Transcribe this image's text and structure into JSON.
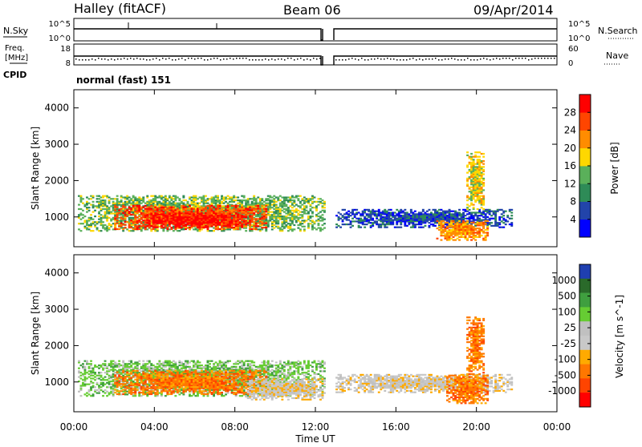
{
  "header": {
    "station": "Halley (fitACF)",
    "beam": "Beam 06",
    "date": "09/Apr/2014"
  },
  "params": {
    "nsky_label": "N.Sky",
    "nsearch_label": "N.Search",
    "freq_label": "Freq.",
    "freq_unit": "[MHz]",
    "nave_label": "Nave",
    "cpid_label": "CPID",
    "cpid_value": "normal (fast) 151",
    "noise_left_ticks": [
      "10^5",
      "10^0"
    ],
    "noise_right_ticks": [
      "10^5",
      "10^0"
    ],
    "freq_ticks": [
      "18",
      "8"
    ],
    "nave_ticks": [
      "60",
      "0"
    ]
  },
  "colors": {
    "power_scale": [
      "#0000ff",
      "#2244aa",
      "#2e8b57",
      "#5ab05a",
      "#ffd700",
      "#ff8c00",
      "#ff4500",
      "#ff0000"
    ],
    "velocity_scale": [
      "#1f3fb0",
      "#2a6a2a",
      "#3f9f3f",
      "#66cc33",
      "#c0c0c0",
      "#c8c8c8",
      "#ffaa00",
      "#ff7700",
      "#ff4400",
      "#ff0000"
    ]
  },
  "chart_data": [
    {
      "type": "heatmap",
      "title": "",
      "xlabel": "Time UT",
      "ylabel": "Slant Range [km]",
      "xlim": [
        0,
        24
      ],
      "ylim": [
        180,
        4500
      ],
      "x_ticks": [
        "00:00",
        "04:00",
        "08:00",
        "12:00",
        "16:00",
        "20:00",
        "00:00"
      ],
      "y_ticks": [
        "1000",
        "2000",
        "3000",
        "4000"
      ],
      "colorbar_label": "Power [dB]",
      "colorbar_ticks": [
        "4",
        "8",
        "12",
        "16",
        "20",
        "24",
        "28"
      ],
      "colorbar_range": [
        0,
        32
      ],
      "data_gap_hours": [
        12.6,
        12.85
      ],
      "regions": [
        {
          "x": [
            0.2,
            12.4
          ],
          "y": [
            600,
            1600
          ],
          "level": 3
        },
        {
          "x": [
            2.0,
            9.5
          ],
          "y": [
            650,
            1300
          ],
          "level": 6
        },
        {
          "x": [
            3.5,
            8.5
          ],
          "y": [
            700,
            1100
          ],
          "level": 7
        },
        {
          "x": [
            13.0,
            21.8
          ],
          "y": [
            700,
            1200
          ],
          "level": 1
        },
        {
          "x": [
            18.0,
            20.6
          ],
          "y": [
            350,
            900
          ],
          "level": 5
        },
        {
          "x": [
            19.5,
            20.4
          ],
          "y": [
            1200,
            2800
          ],
          "level": 4
        }
      ]
    },
    {
      "type": "heatmap",
      "title": "",
      "xlabel": "Time UT",
      "ylabel": "Slant Range [km]",
      "xlim": [
        0,
        24
      ],
      "ylim": [
        180,
        4500
      ],
      "x_ticks": [
        "00:00",
        "04:00",
        "08:00",
        "12:00",
        "16:00",
        "20:00",
        "00:00"
      ],
      "y_ticks": [
        "1000",
        "2000",
        "3000",
        "4000"
      ],
      "colorbar_label": "Velocity [m s^-1]",
      "colorbar_ticks": [
        "1000",
        "500",
        "100",
        "25",
        "-25",
        "-100",
        "-500",
        "-1000"
      ],
      "data_gap_hours": [
        12.6,
        12.85
      ],
      "regions": [
        {
          "x": [
            0.2,
            12.4
          ],
          "y": [
            600,
            1600
          ],
          "level": 3
        },
        {
          "x": [
            2.0,
            9.5
          ],
          "y": [
            650,
            1300
          ],
          "level": 7
        },
        {
          "x": [
            8.5,
            12.4
          ],
          "y": [
            500,
            1100
          ],
          "level": 5
        },
        {
          "x": [
            13.0,
            21.8
          ],
          "y": [
            700,
            1200
          ],
          "level": 5
        },
        {
          "x": [
            18.5,
            20.6
          ],
          "y": [
            400,
            1200
          ],
          "level": 7
        },
        {
          "x": [
            19.5,
            20.4
          ],
          "y": [
            1200,
            2800
          ],
          "level": 7
        }
      ]
    }
  ]
}
